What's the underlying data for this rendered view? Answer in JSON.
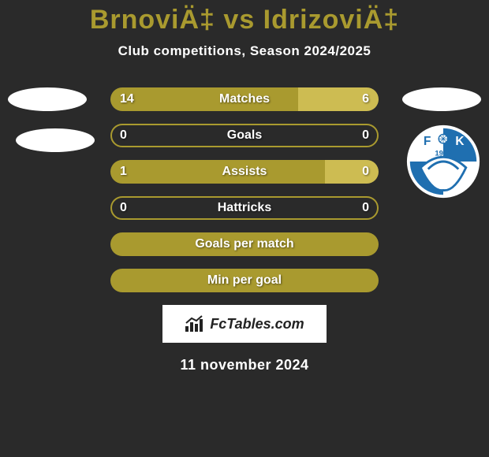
{
  "title_color": "#a99a2f",
  "header": {
    "title": "BrnoviÄ‡ vs IdrizoviÄ‡",
    "subtitle": "Club competitions, Season 2024/2025"
  },
  "bars": {
    "left_color": "#a99a2f",
    "right_color": "#cdbc52",
    "empty_border_color": "#a99a2f",
    "border_radius": 16
  },
  "rows": [
    {
      "label": "Matches",
      "left": "14",
      "right": "6",
      "has_vals": true,
      "left_pct": 70,
      "right_pct": 30
    },
    {
      "label": "Goals",
      "left": "0",
      "right": "0",
      "has_vals": true,
      "left_pct": 0,
      "right_pct": 0
    },
    {
      "label": "Assists",
      "left": "1",
      "right": "0",
      "has_vals": true,
      "left_pct": 80,
      "right_pct": 20
    },
    {
      "label": "Hattricks",
      "left": "0",
      "right": "0",
      "has_vals": true,
      "left_pct": 0,
      "right_pct": 0
    },
    {
      "label": "Goals per match",
      "left": "",
      "right": "",
      "has_vals": false,
      "left_pct": 100,
      "right_pct": 0
    },
    {
      "label": "Min per goal",
      "left": "",
      "right": "",
      "has_vals": false,
      "left_pct": 100,
      "right_pct": 0
    }
  ],
  "badge": {
    "bg": "#ffffff",
    "main": "#1f6fb0",
    "year": "1922"
  },
  "fctables": {
    "text": "FcTables.com"
  },
  "date": "11 november 2024"
}
